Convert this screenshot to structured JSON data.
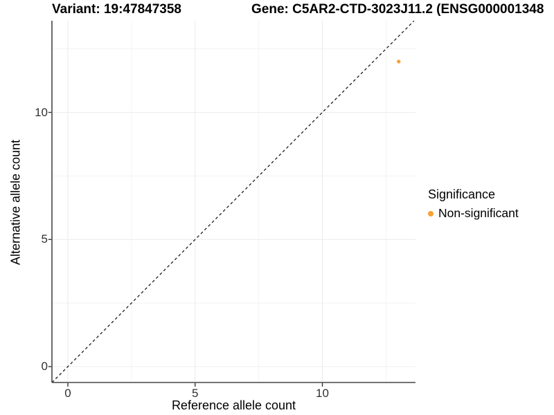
{
  "chart_data": {
    "type": "scatter",
    "titles": [
      "Variant: 19:47847358",
      "Gene: C5AR2-CTD-3023J11.2 (ENSG000001348"
    ],
    "xlabel": "Reference allele count",
    "ylabel": "Alternative allele count",
    "xlim": [
      -0.63,
      13.6
    ],
    "ylim": [
      -0.63,
      13.6
    ],
    "x_ticks": [
      0,
      5,
      10
    ],
    "y_ticks": [
      0,
      5,
      10
    ],
    "x_minor_ticks": [
      2.5,
      7.5,
      12.5
    ],
    "y_minor_ticks": [
      2.5,
      7.5,
      12.5
    ],
    "grid": "major+minor",
    "aspect": "equal",
    "reference_line": {
      "kind": "identity y=x",
      "style": "dashed",
      "color": "#111111"
    },
    "series": [
      {
        "name": "Non-significant",
        "color": "#F9A236",
        "points": [
          {
            "x": 13,
            "y": 12
          }
        ]
      }
    ],
    "legend": {
      "title": "Significance",
      "position": "right",
      "entries": [
        {
          "label": "Non-significant",
          "color": "#F9A236"
        }
      ]
    },
    "style_colors": {
      "axis_line": "#454545",
      "tick_mark": "#333333",
      "major_grid": "#ECECEC",
      "minor_grid": "#F3F3F3",
      "tick_text": "#303030"
    }
  }
}
